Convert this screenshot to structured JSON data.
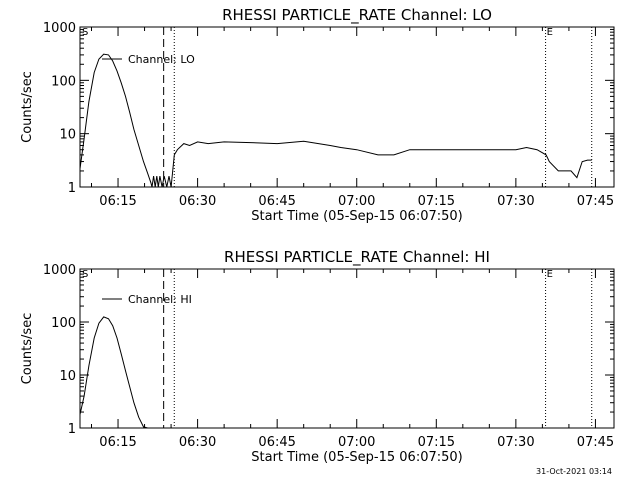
{
  "chart_data": [
    {
      "type": "line",
      "title": "RHESSI PARTICLE_RATE Channel: LO",
      "xlabel": "Start Time (05-Sep-15 06:07:50)",
      "ylabel": "Counts/sec",
      "yscale": "log",
      "ylim": [
        1,
        1000
      ],
      "xlim_min_after_0600": [
        7.83,
        108.5
      ],
      "x_tick_labels": [
        "06:15",
        "06:30",
        "06:45",
        "07:00",
        "07:15",
        "07:30",
        "07:45"
      ],
      "y_tick_labels": [
        "1",
        "10",
        "100",
        "1000"
      ],
      "corner_mark_left": "S",
      "corner_mark_right": "E",
      "vlines_min_after_0600": [
        {
          "x": 23.6,
          "style": "dashed"
        },
        {
          "x": 25.6,
          "style": "dotted"
        },
        {
          "x": 95.6,
          "style": "dotted"
        },
        {
          "x": 104.3,
          "style": "dotted"
        }
      ],
      "series": [
        {
          "name": "Channel: LO",
          "x_min_after_0600": [
            7.83,
            8.6,
            9.5,
            10.5,
            11.4,
            12.3,
            13.2,
            14.0,
            14.8,
            15.6,
            16.4,
            17.2,
            18.0,
            18.9,
            19.8,
            20.6,
            21.2,
            21.4,
            21.7,
            22.0,
            22.3,
            22.6,
            22.9,
            23.3,
            23.7,
            24.2,
            24.6,
            25.0,
            25.6,
            26.2,
            27.4,
            28.5,
            30.0,
            32.0,
            35.0,
            40.0,
            45.0,
            50.0,
            55.0,
            57.0,
            60.0,
            64.0,
            67.0,
            70.0,
            75.0,
            80.0,
            85.0,
            90.0,
            92.0,
            94.0,
            95.7,
            96.3,
            98.0,
            99.6,
            100.4,
            101.5,
            102.5,
            103.5,
            104.3
          ],
          "y": [
            2.2,
            8,
            40,
            140,
            250,
            310,
            300,
            230,
            150,
            90,
            50,
            25,
            12,
            6,
            3,
            1.8,
            1.2,
            1.0,
            1.6,
            1.0,
            1.6,
            1.0,
            1.6,
            1.0,
            1.6,
            1.0,
            1.6,
            1.0,
            4.0,
            5.0,
            6.5,
            6.0,
            7.0,
            6.5,
            7.0,
            6.8,
            6.5,
            7.2,
            6.0,
            5.5,
            5.0,
            4.0,
            4.0,
            5.0,
            5.0,
            5.0,
            5.0,
            5.0,
            5.5,
            5.0,
            4.0,
            3.0,
            2.0,
            2.0,
            2.0,
            1.5,
            3.0,
            3.2,
            3.2
          ]
        }
      ]
    },
    {
      "type": "line",
      "title": "RHESSI PARTICLE_RATE Channel: HI",
      "xlabel": "Start Time (05-Sep-15 06:07:50)",
      "ylabel": "Counts/sec",
      "yscale": "log",
      "ylim": [
        1,
        1000
      ],
      "xlim_min_after_0600": [
        7.83,
        108.5
      ],
      "x_tick_labels": [
        "06:15",
        "06:30",
        "06:45",
        "07:00",
        "07:15",
        "07:30",
        "07:45"
      ],
      "y_tick_labels": [
        "1",
        "10",
        "100",
        "1000"
      ],
      "corner_mark_left": "S",
      "corner_mark_right": "E",
      "vlines_min_after_0600": [
        {
          "x": 23.6,
          "style": "dashed"
        },
        {
          "x": 25.6,
          "style": "dotted"
        },
        {
          "x": 95.6,
          "style": "dotted"
        },
        {
          "x": 104.3,
          "style": "dotted"
        }
      ],
      "series": [
        {
          "name": "Channel: HI",
          "x_min_after_0600": [
            7.83,
            8.6,
            9.5,
            10.5,
            11.4,
            12.3,
            13.2,
            14.0,
            14.8,
            15.6,
            16.4,
            17.2,
            18.0,
            18.9,
            19.8,
            20.6
          ],
          "y": [
            1.8,
            4,
            15,
            50,
            95,
            125,
            115,
            85,
            50,
            25,
            12,
            6,
            3,
            1.6,
            1.05,
            1.0
          ]
        }
      ]
    }
  ],
  "footer": {
    "timestamp": "31-Oct-2021 03:14"
  }
}
